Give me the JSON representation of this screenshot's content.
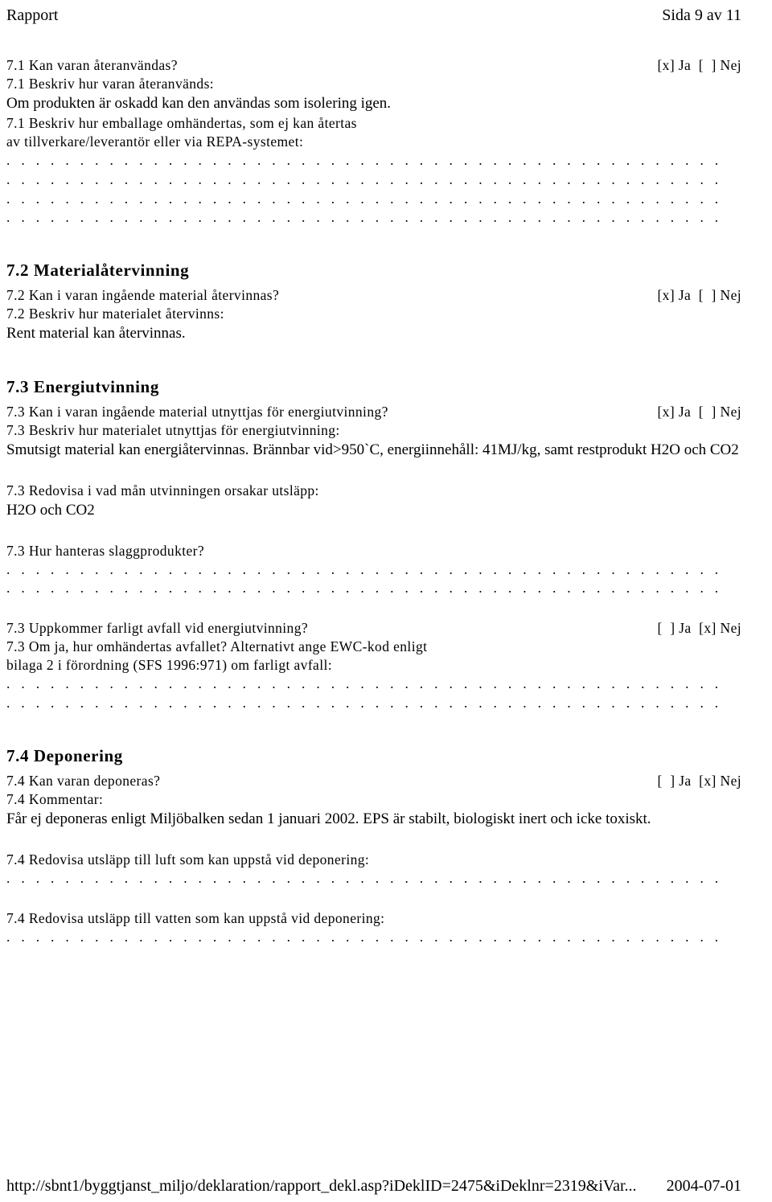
{
  "header": {
    "left": "Rapport",
    "right": "Sida 9 av 11"
  },
  "s71": {
    "q1": "7.1 Kan varan återanvändas?",
    "q1_ans": "[x] Ja  [  ] Nej",
    "q2": "7.1 Beskriv hur varan återanvänds:",
    "q2_body": "Om produkten är oskadd kan den användas som isolering igen.",
    "q3a": "7.1 Beskriv hur emballage omhändertas, som ej kan återtas",
    "q3b": "av tillverkare/leverantör eller via REPA-systemet:"
  },
  "s72": {
    "heading": "7.2 Materialåtervinning",
    "q1": "7.2 Kan i varan ingående material återvinnas?",
    "q1_ans": "[x] Ja  [  ] Nej",
    "q2": "7.2 Beskriv hur materialet återvinns:",
    "q2_body": "Rent material kan återvinnas."
  },
  "s73": {
    "heading": "7.3 Energiutvinning",
    "q1": "7.3 Kan i varan ingående material utnyttjas för energiutvinning?",
    "q1_ans": "[x] Ja  [  ] Nej",
    "q2": "7.3 Beskriv hur materialet utnyttjas för energiutvinning:",
    "q2_body": "Smutsigt material kan energiåtervinnas. Brännbar vid>950`C, energiinnehåll: 41MJ/kg, samt restprodukt H2O och CO2",
    "q3": "7.3 Redovisa i vad mån utvinningen orsakar utsläpp:",
    "q3_body": "H2O och CO2",
    "q4": "7.3 Hur hanteras slaggprodukter?",
    "q5": "7.3 Uppkommer farligt avfall vid energiutvinning?",
    "q5_ans": "[  ] Ja  [x] Nej",
    "q6a": "7.3 Om ja, hur omhändertas avfallet? Alternativt ange EWC-kod enligt",
    "q6b": "bilaga 2 i förordning (SFS 1996:971) om farligt avfall:"
  },
  "s74": {
    "heading": "7.4 Deponering",
    "q1": "7.4 Kan varan deponeras?",
    "q1_ans": "[  ] Ja  [x] Nej",
    "q2": "7.4 Kommentar:",
    "q2_body": "Får ej deponeras enligt Miljöbalken sedan 1 januari 2002. EPS är stabilt, biologiskt inert och icke toxiskt.",
    "q3": "7.4 Redovisa utsläpp till luft som kan uppstå vid deponering:",
    "q4": "7.4 Redovisa utsläpp till vatten som kan uppstå vid deponering:"
  },
  "dotline": ". . . . . . . . . . . . . . . . . . . . . . . . . . . . . . . . . . . . . . . . . . . . . . . . .",
  "footer": {
    "left": "http://sbnt1/byggtjanst_miljo/deklaration/rapport_dekl.asp?iDeklID=2475&iDeklnr=2319&iVar...",
    "right": "2004-07-01"
  }
}
